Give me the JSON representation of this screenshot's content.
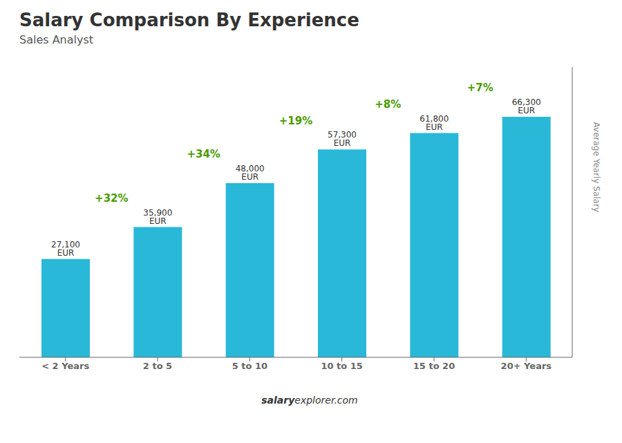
{
  "chart_data": {
    "type": "bar",
    "title": "Salary Comparison By Experience",
    "subtitle": "Sales Analyst",
    "ylabel": "Average Yearly Salary",
    "categories": [
      "< 2 Years",
      "2 to 5",
      "5 to 10",
      "10 to 15",
      "15 to 20",
      "20+ Years"
    ],
    "values": [
      27100,
      35900,
      48000,
      57300,
      61800,
      66300
    ],
    "value_labels": [
      "27,100 EUR",
      "35,900 EUR",
      "48,000 EUR",
      "57,300 EUR",
      "61,800 EUR",
      "66,300 EUR"
    ],
    "data_labels": true,
    "annotations": [
      "+32%",
      "+34%",
      "+19%",
      "+8%",
      "+7%"
    ],
    "watermark": [
      "salary",
      "explorer.com"
    ],
    "color": "#29B8D8",
    "ylim": [
      0,
      80000
    ],
    "tick_labels": "x",
    "grid": false
  }
}
